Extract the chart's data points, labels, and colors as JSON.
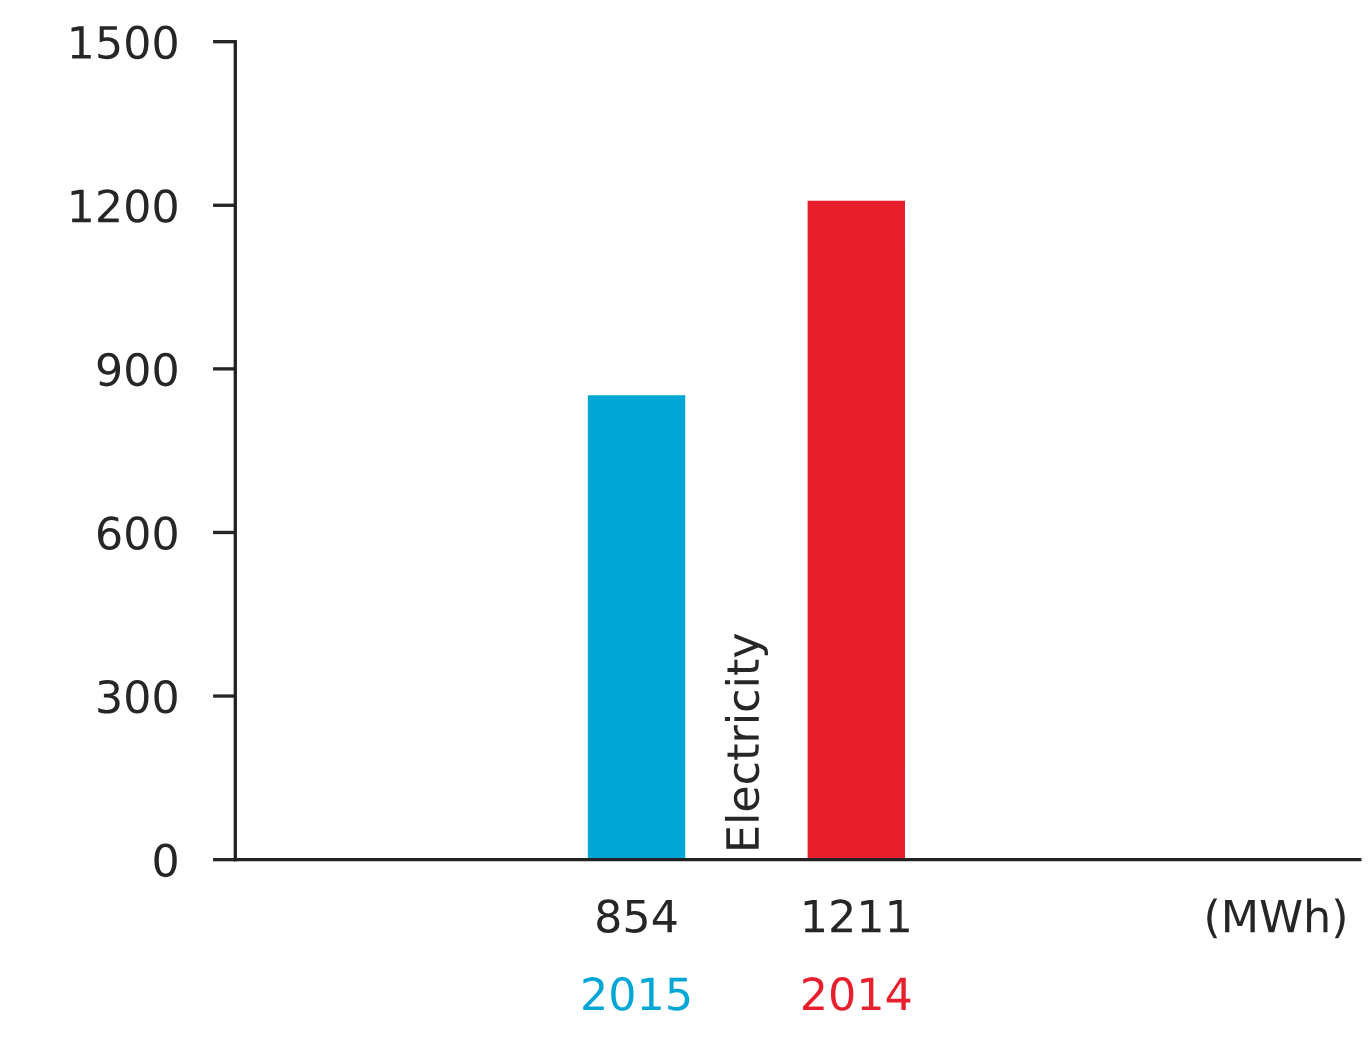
{
  "chart_data": {
    "type": "bar",
    "categories": [
      "Electricity"
    ],
    "series": [
      {
        "name": "2015",
        "color": "#00a6d6",
        "values": [
          854
        ]
      },
      {
        "name": "2014",
        "color": "#e8202e",
        "values": [
          1211
        ]
      }
    ],
    "ylim": [
      0,
      1500
    ],
    "yticks": [
      0,
      300,
      600,
      900,
      1200,
      1500
    ],
    "data_labels": true,
    "legend": "bottom",
    "grid": false,
    "annotations": [
      "(MWh)"
    ]
  }
}
